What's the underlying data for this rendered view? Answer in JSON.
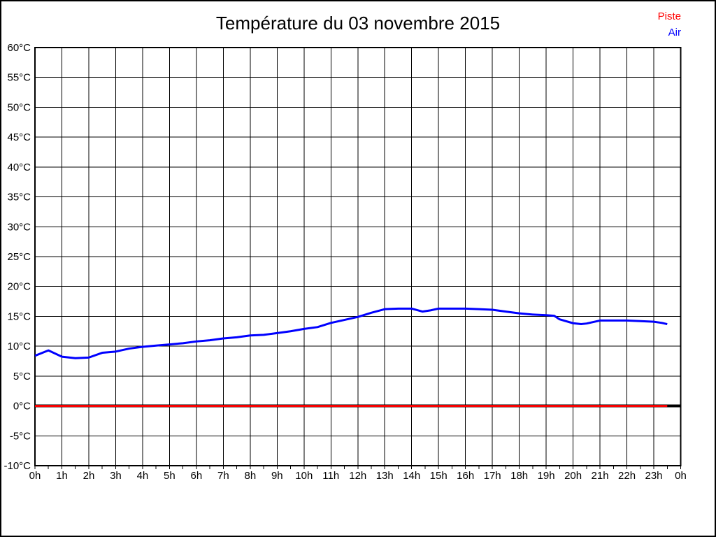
{
  "window": {
    "background": "#ffffff",
    "frame_border_color": "#000000"
  },
  "legend": {
    "position": "top-right"
  },
  "chart_data": {
    "type": "line",
    "title": "Température du 03 novembre 2015",
    "xlabel": "",
    "ylabel": "",
    "xlim": [
      0,
      24
    ],
    "ylim": [
      -10,
      60
    ],
    "grid": true,
    "grid_color": "#000000",
    "zero_line_value": 0,
    "zero_line_color": "#000000",
    "x_tick_values": [
      0,
      1,
      2,
      3,
      4,
      5,
      6,
      7,
      8,
      9,
      10,
      11,
      12,
      13,
      14,
      15,
      16,
      17,
      18,
      19,
      20,
      21,
      22,
      23,
      24
    ],
    "x_tick_labels": [
      "0h",
      "1h",
      "2h",
      "3h",
      "4h",
      "5h",
      "6h",
      "7h",
      "8h",
      "9h",
      "10h",
      "11h",
      "12h",
      "13h",
      "14h",
      "15h",
      "16h",
      "17h",
      "18h",
      "19h",
      "20h",
      "21h",
      "22h",
      "23h",
      "0h"
    ],
    "x_minor_tick_step": 0.5,
    "y_tick_values": [
      60,
      55,
      50,
      45,
      40,
      35,
      30,
      25,
      20,
      15,
      10,
      5,
      0,
      -5,
      -10
    ],
    "y_tick_labels": [
      "60°C",
      "55°C",
      "50°C",
      "45°C",
      "40°C",
      "35°C",
      "30°C",
      "25°C",
      "20°C",
      "15°C",
      "10°C",
      "5°C",
      "0°C",
      "-5°C",
      "-10°C"
    ],
    "series": [
      {
        "name": "Piste",
        "color": "#ff0000",
        "x": [
          0,
          23.5
        ],
        "values": [
          0,
          0
        ]
      },
      {
        "name": "Air",
        "color": "#0000ff",
        "x": [
          0,
          0.5,
          1,
          1.5,
          2,
          2.5,
          3,
          3.5,
          4,
          4.5,
          5,
          5.5,
          6,
          6.5,
          7,
          7.5,
          8,
          8.5,
          9,
          9.5,
          10,
          10.5,
          11,
          11.5,
          12,
          12.5,
          13,
          13.5,
          14,
          14.4,
          14.7,
          15,
          15.5,
          16,
          16.5,
          17,
          17.5,
          18,
          18.5,
          19,
          19.3,
          19.5,
          20,
          20.3,
          20.5,
          21,
          21.5,
          22,
          22.5,
          23,
          23.3,
          23.5
        ],
        "values": [
          8.4,
          9.3,
          8.25,
          8.0,
          8.1,
          8.9,
          9.1,
          9.6,
          9.9,
          10.1,
          10.3,
          10.5,
          10.8,
          11.0,
          11.3,
          11.5,
          11.8,
          11.9,
          12.2,
          12.5,
          12.9,
          13.2,
          13.9,
          14.4,
          14.9,
          15.6,
          16.2,
          16.3,
          16.3,
          15.8,
          16.0,
          16.3,
          16.3,
          16.3,
          16.2,
          16.1,
          15.8,
          15.5,
          15.3,
          15.2,
          15.1,
          14.5,
          13.85,
          13.7,
          13.8,
          14.3,
          14.3,
          14.3,
          14.2,
          14.1,
          13.9,
          13.7
        ]
      }
    ]
  }
}
